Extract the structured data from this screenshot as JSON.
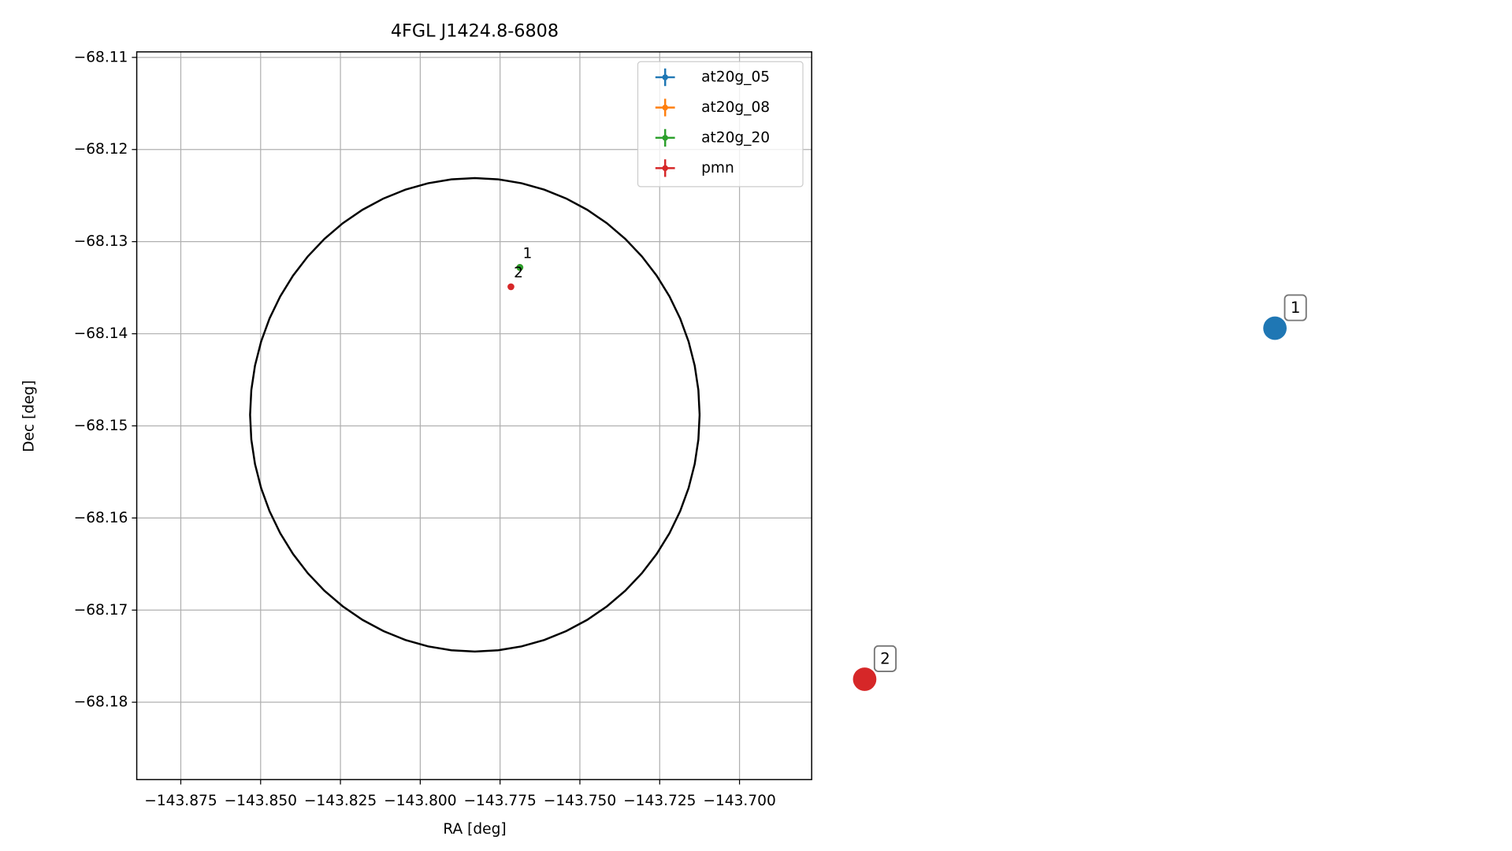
{
  "chart_data": {
    "type": "scatter",
    "title": "4FGL J1424.8-6808",
    "xlabel": "RA [deg]",
    "ylabel": "Dec [deg]",
    "xlim": [
      -143.8888,
      -143.6774
    ],
    "ylim": [
      -68.1884,
      -68.1094
    ],
    "xticks": [
      {
        "value": -143.875,
        "label": "−143.875"
      },
      {
        "value": -143.85,
        "label": "−143.850"
      },
      {
        "value": -143.825,
        "label": "−143.825"
      },
      {
        "value": -143.8,
        "label": "−143.800"
      },
      {
        "value": -143.775,
        "label": "−143.775"
      },
      {
        "value": -143.75,
        "label": "−143.750"
      },
      {
        "value": -143.725,
        "label": "−143.725"
      },
      {
        "value": -143.7,
        "label": "−143.700"
      }
    ],
    "yticks": [
      {
        "value": -68.11,
        "label": "−68.11"
      },
      {
        "value": -68.12,
        "label": "−68.12"
      },
      {
        "value": -68.13,
        "label": "−68.13"
      },
      {
        "value": -68.14,
        "label": "−68.14"
      },
      {
        "value": -68.15,
        "label": "−68.15"
      },
      {
        "value": -68.16,
        "label": "−68.16"
      },
      {
        "value": -68.17,
        "label": "−68.17"
      },
      {
        "value": -68.18,
        "label": "−68.18"
      }
    ],
    "grid": true,
    "legend": "upper right",
    "series": [
      {
        "name": "at20g_05",
        "color": "#1f77b4",
        "x": [
          -143.7688
        ],
        "values": [
          -68.1328
        ]
      },
      {
        "name": "at20g_08",
        "color": "#ff7f0e",
        "x": [
          -143.7688
        ],
        "values": [
          -68.1328
        ]
      },
      {
        "name": "at20g_20",
        "color": "#2ca02c",
        "x": [
          -143.7688
        ],
        "values": [
          -68.1328
        ],
        "labels": [
          "1"
        ]
      },
      {
        "name": "pmn",
        "color": "#d62728",
        "x": [
          -143.7716
        ],
        "values": [
          -68.1349
        ],
        "labels": [
          "2"
        ]
      }
    ],
    "ellipse": {
      "center_x": -143.7829,
      "center_y": -68.1488,
      "radius_x": 0.0704,
      "radius_y": 0.0257,
      "color": "#000000"
    },
    "annotations": [
      {
        "label": "1",
        "x": -143.5323,
        "y": -68.1394,
        "color": "#1f77b4"
      },
      {
        "label": "2",
        "x": -143.6608,
        "y": -68.1775,
        "color": "#d62728"
      }
    ]
  }
}
